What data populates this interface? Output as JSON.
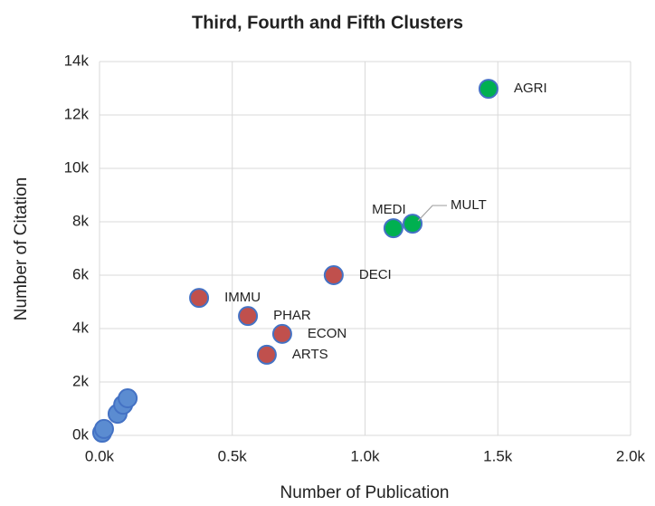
{
  "chart_data": {
    "type": "scatter",
    "title": "Third, Fourth and Fifth Clusters",
    "xlabel": "Number of Publication",
    "ylabel": "Number of Citation",
    "xlim": [
      0,
      2000
    ],
    "ylim": [
      0,
      14000
    ],
    "xticks": [
      {
        "value": 0,
        "label": "0.0k"
      },
      {
        "value": 500,
        "label": "0.5k"
      },
      {
        "value": 1000,
        "label": "1.0k"
      },
      {
        "value": 1500,
        "label": "1.5k"
      },
      {
        "value": 2000,
        "label": "2.0k"
      }
    ],
    "yticks": [
      {
        "value": 0,
        "label": "0k"
      },
      {
        "value": 2000,
        "label": "2k"
      },
      {
        "value": 4000,
        "label": "4k"
      },
      {
        "value": 6000,
        "label": "6k"
      },
      {
        "value": 8000,
        "label": "8k"
      },
      {
        "value": 10000,
        "label": "10k"
      },
      {
        "value": 12000,
        "label": "12k"
      },
      {
        "value": 14000,
        "label": "14k"
      }
    ],
    "grid": true,
    "series": [
      {
        "color": "#5b8cd1",
        "x": [
          10,
          17,
          68,
          89,
          106
        ],
        "values": [
          100,
          240,
          810,
          1150,
          1390
        ]
      },
      {
        "color": "#c0504d",
        "x": [
          375,
          559,
          688,
          630,
          882
        ],
        "values": [
          5150,
          4470,
          3800,
          3020,
          6000
        ],
        "labels": [
          "IMMU",
          "PHAR",
          "ECON",
          "ARTS",
          "DECI"
        ]
      },
      {
        "color": "#00b050",
        "x": [
          1107,
          1179,
          1465
        ],
        "values": [
          7760,
          7930,
          12980
        ],
        "labels": [
          "MEDI",
          "MULT",
          "AGRI"
        ]
      }
    ]
  }
}
